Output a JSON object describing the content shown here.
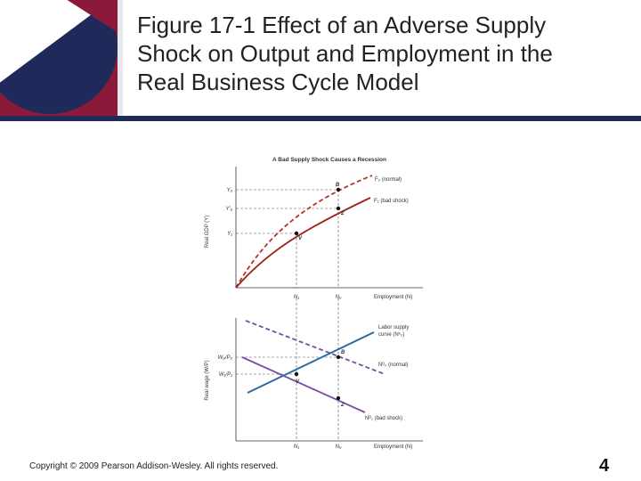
{
  "slide": {
    "title_lines": [
      "Figure 17-1  Effect of an Adverse Supply",
      "Shock on Output and Employment in the",
      "Real Business Cycle Model"
    ],
    "copyright": "Copyright © 2009 Pearson Addison-Wesley. All rights reserved.",
    "page_number": "4"
  },
  "colors": {
    "navy": "#1f2a5a",
    "crimson": "#8b1a3a",
    "normal_curve": "#b8332a",
    "shock_curve": "#9a2418",
    "labor_supply": "#2a6aa0",
    "labor_demand": "#7a4fa8"
  },
  "figure": {
    "heading": "A Bad Supply Shock Causes a Recession",
    "top_panel": {
      "y_axis_label": "Real GDP (Y)",
      "x_axis_label": "Employment (N)",
      "y_ticks": [
        "Y₀",
        "Y′₀",
        "Y₁"
      ],
      "x_ticks": [
        "N₁",
        "N₀"
      ],
      "curve_normal_label": "F₀ (normal)",
      "curve_shock_label": "F₁ (bad shock)",
      "points": [
        "B",
        "Z",
        "V"
      ]
    },
    "bottom_panel": {
      "y_axis_label": "Real wage (W/P)",
      "x_axis_label": "Employment (N)",
      "y_ticks": [
        "W₀/P₀",
        "W₁/P₁"
      ],
      "x_ticks": [
        "N₁",
        "N₀"
      ],
      "supply_label_line1": "Labor supply",
      "supply_label_line2": "curve (Nˢ₀)",
      "demand_normal_label": "Nᴰ₀ (normal)",
      "demand_shock_label": "Nᴰ₁ (bad shock)",
      "points": [
        "B",
        "V",
        "Z"
      ]
    }
  }
}
